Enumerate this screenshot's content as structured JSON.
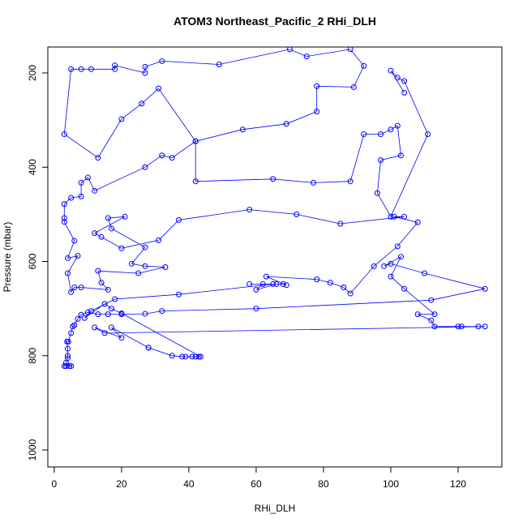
{
  "chart_data": {
    "type": "line",
    "title": "ATOM3 Northeast_Pacific_2 RHi_DLH",
    "x_label": "RHi_DLH",
    "y_label": "Pressure (mbar)",
    "color": "#0000ff",
    "xlim": [
      -1.9,
      133
    ],
    "ylim": [
      1036,
      145
    ],
    "xticks": [
      0,
      20,
      40,
      60,
      80,
      100,
      120
    ],
    "yticks": [
      200,
      400,
      600,
      800,
      1000
    ],
    "x": [
      3,
      3.5,
      4.5,
      5,
      3.5,
      4,
      4,
      4,
      3.8,
      4.2,
      5,
      5.5,
      6,
      7,
      8,
      10,
      13,
      16,
      20,
      27,
      32,
      60,
      112,
      128,
      110,
      100,
      98,
      103,
      100,
      104,
      113,
      108,
      112,
      113,
      120,
      121,
      126,
      128,
      15,
      12,
      20,
      17,
      28,
      28,
      35,
      38,
      39,
      41,
      42,
      43,
      43.5,
      20,
      17,
      15,
      9,
      11,
      18,
      37,
      65,
      58,
      62,
      60,
      66,
      68,
      69,
      63,
      78,
      82,
      86,
      88,
      95,
      102,
      108,
      101,
      104,
      85,
      72,
      58,
      37,
      31,
      20,
      14,
      12,
      21,
      16,
      17,
      27,
      23,
      27,
      33,
      25,
      13,
      14,
      16,
      8,
      6,
      5,
      4,
      7,
      4,
      6,
      3,
      3,
      3,
      5,
      8,
      8,
      10,
      12,
      27,
      32,
      35,
      42,
      56,
      69,
      78,
      78,
      89,
      92,
      88,
      75,
      70,
      49,
      32,
      27,
      27,
      18,
      18,
      11,
      8,
      5,
      3,
      13,
      20,
      26,
      31,
      42,
      42,
      65,
      77,
      88,
      92,
      97,
      100,
      102,
      103,
      97,
      96,
      100,
      111,
      104,
      102,
      100,
      104
    ],
    "values": [
      822,
      822,
      822,
      822,
      815,
      805,
      800,
      785,
      770,
      770,
      752,
      738,
      735,
      722,
      713,
      708,
      712,
      712,
      712,
      711,
      705,
      700,
      682,
      658,
      625,
      605,
      610,
      590,
      632,
      658,
      712,
      712,
      725,
      738,
      738,
      738,
      738,
      738,
      752,
      740,
      762,
      740,
      783,
      783,
      800,
      802,
      802,
      802,
      802,
      802,
      802,
      710,
      700,
      690,
      720,
      705,
      680,
      670,
      648,
      648,
      648,
      660,
      648,
      648,
      650,
      632,
      638,
      645,
      655,
      668,
      610,
      568,
      517,
      505,
      505,
      520,
      500,
      490,
      512,
      555,
      572,
      548,
      540,
      505,
      508,
      530,
      570,
      605,
      610,
      612,
      625,
      620,
      645,
      660,
      655,
      655,
      665,
      625,
      588,
      593,
      556,
      516,
      508,
      478,
      465,
      462,
      433,
      422,
      450,
      400,
      375,
      380,
      345,
      320,
      308,
      282,
      228,
      230,
      185,
      150,
      165,
      150,
      182,
      175,
      187,
      200,
      184,
      192,
      192,
      192,
      192,
      330,
      380,
      298,
      265,
      233,
      345,
      430,
      425,
      433,
      430,
      330,
      330,
      320,
      312,
      375,
      385,
      455,
      505,
      330,
      217,
      210,
      195,
      242
    ]
  }
}
